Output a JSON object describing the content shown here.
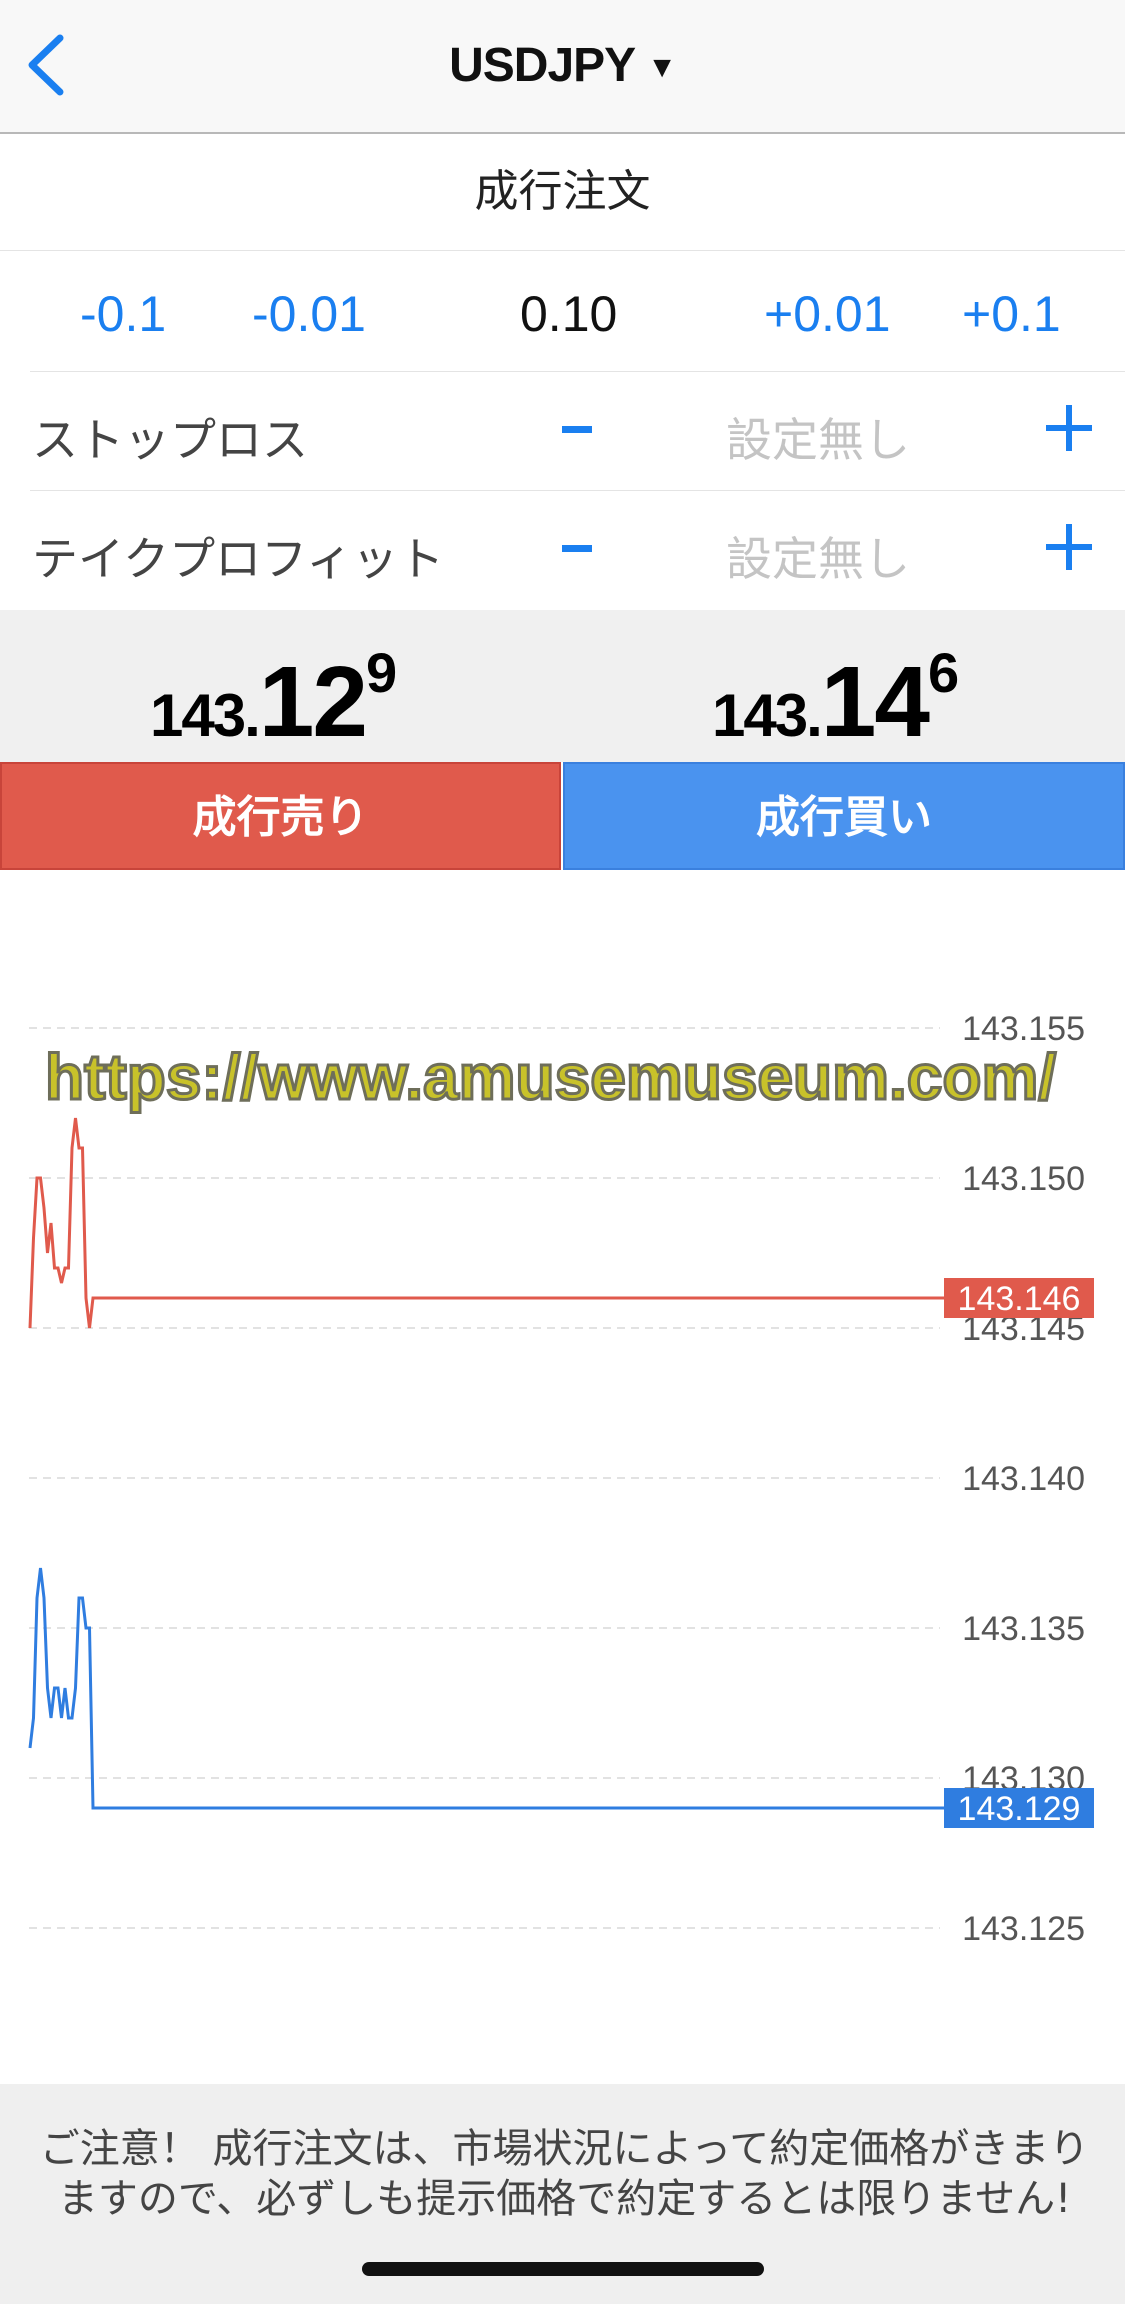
{
  "nav": {
    "title": "USDJPY",
    "dropdown_icon": "triangle-down-icon",
    "back_icon": "chevron-left-icon"
  },
  "order_type": "成行注文",
  "lot": {
    "dec_big": "-0.1",
    "dec_small": "-0.01",
    "value": "0.10",
    "inc_small": "+0.01",
    "inc_big": "+0.1"
  },
  "stop_loss": {
    "label": "ストップロス",
    "value_placeholder": "設定無し"
  },
  "take_profit": {
    "label": "テイクプロフィット",
    "value_placeholder": "設定無し"
  },
  "bid": {
    "prefix": "143.",
    "big": "12",
    "pip": "9"
  },
  "ask": {
    "prefix": "143.",
    "big": "14",
    "pip": "6"
  },
  "buttons": {
    "sell": "成行売り",
    "buy": "成行買い"
  },
  "colors": {
    "sell": "#e05a4c",
    "buy": "#4a93ef",
    "accent": "#1a7ff0"
  },
  "watermark": "https://www.amusemuseum.com/",
  "chart_data": {
    "type": "line",
    "ylim": [
      143.123,
      143.158
    ],
    "yticks": [
      "143.155",
      "143.150",
      "143.145",
      "143.140",
      "143.135",
      "143.130",
      "143.125"
    ],
    "grid": true,
    "series": [
      {
        "color": "#e05a4c",
        "current": "143.146",
        "values": [
          143.145,
          143.148,
          143.15,
          143.15,
          143.149,
          143.1475,
          143.1485,
          143.147,
          143.147,
          143.1465,
          143.147,
          143.147,
          143.151,
          143.152,
          143.151,
          143.151,
          143.146,
          143.145,
          143.146
        ]
      },
      {
        "color": "#2f7de0",
        "current": "143.129",
        "values": [
          143.131,
          143.132,
          143.136,
          143.137,
          143.136,
          143.133,
          143.132,
          143.133,
          143.133,
          143.132,
          143.133,
          143.132,
          143.132,
          143.133,
          143.136,
          143.136,
          143.135,
          143.135,
          143.129
        ]
      }
    ]
  },
  "footer_notice": "ご注意！ 成行注文は、市場状況によって約定価格がきまりますので、必ずしも提示価格で約定するとは限りません!"
}
